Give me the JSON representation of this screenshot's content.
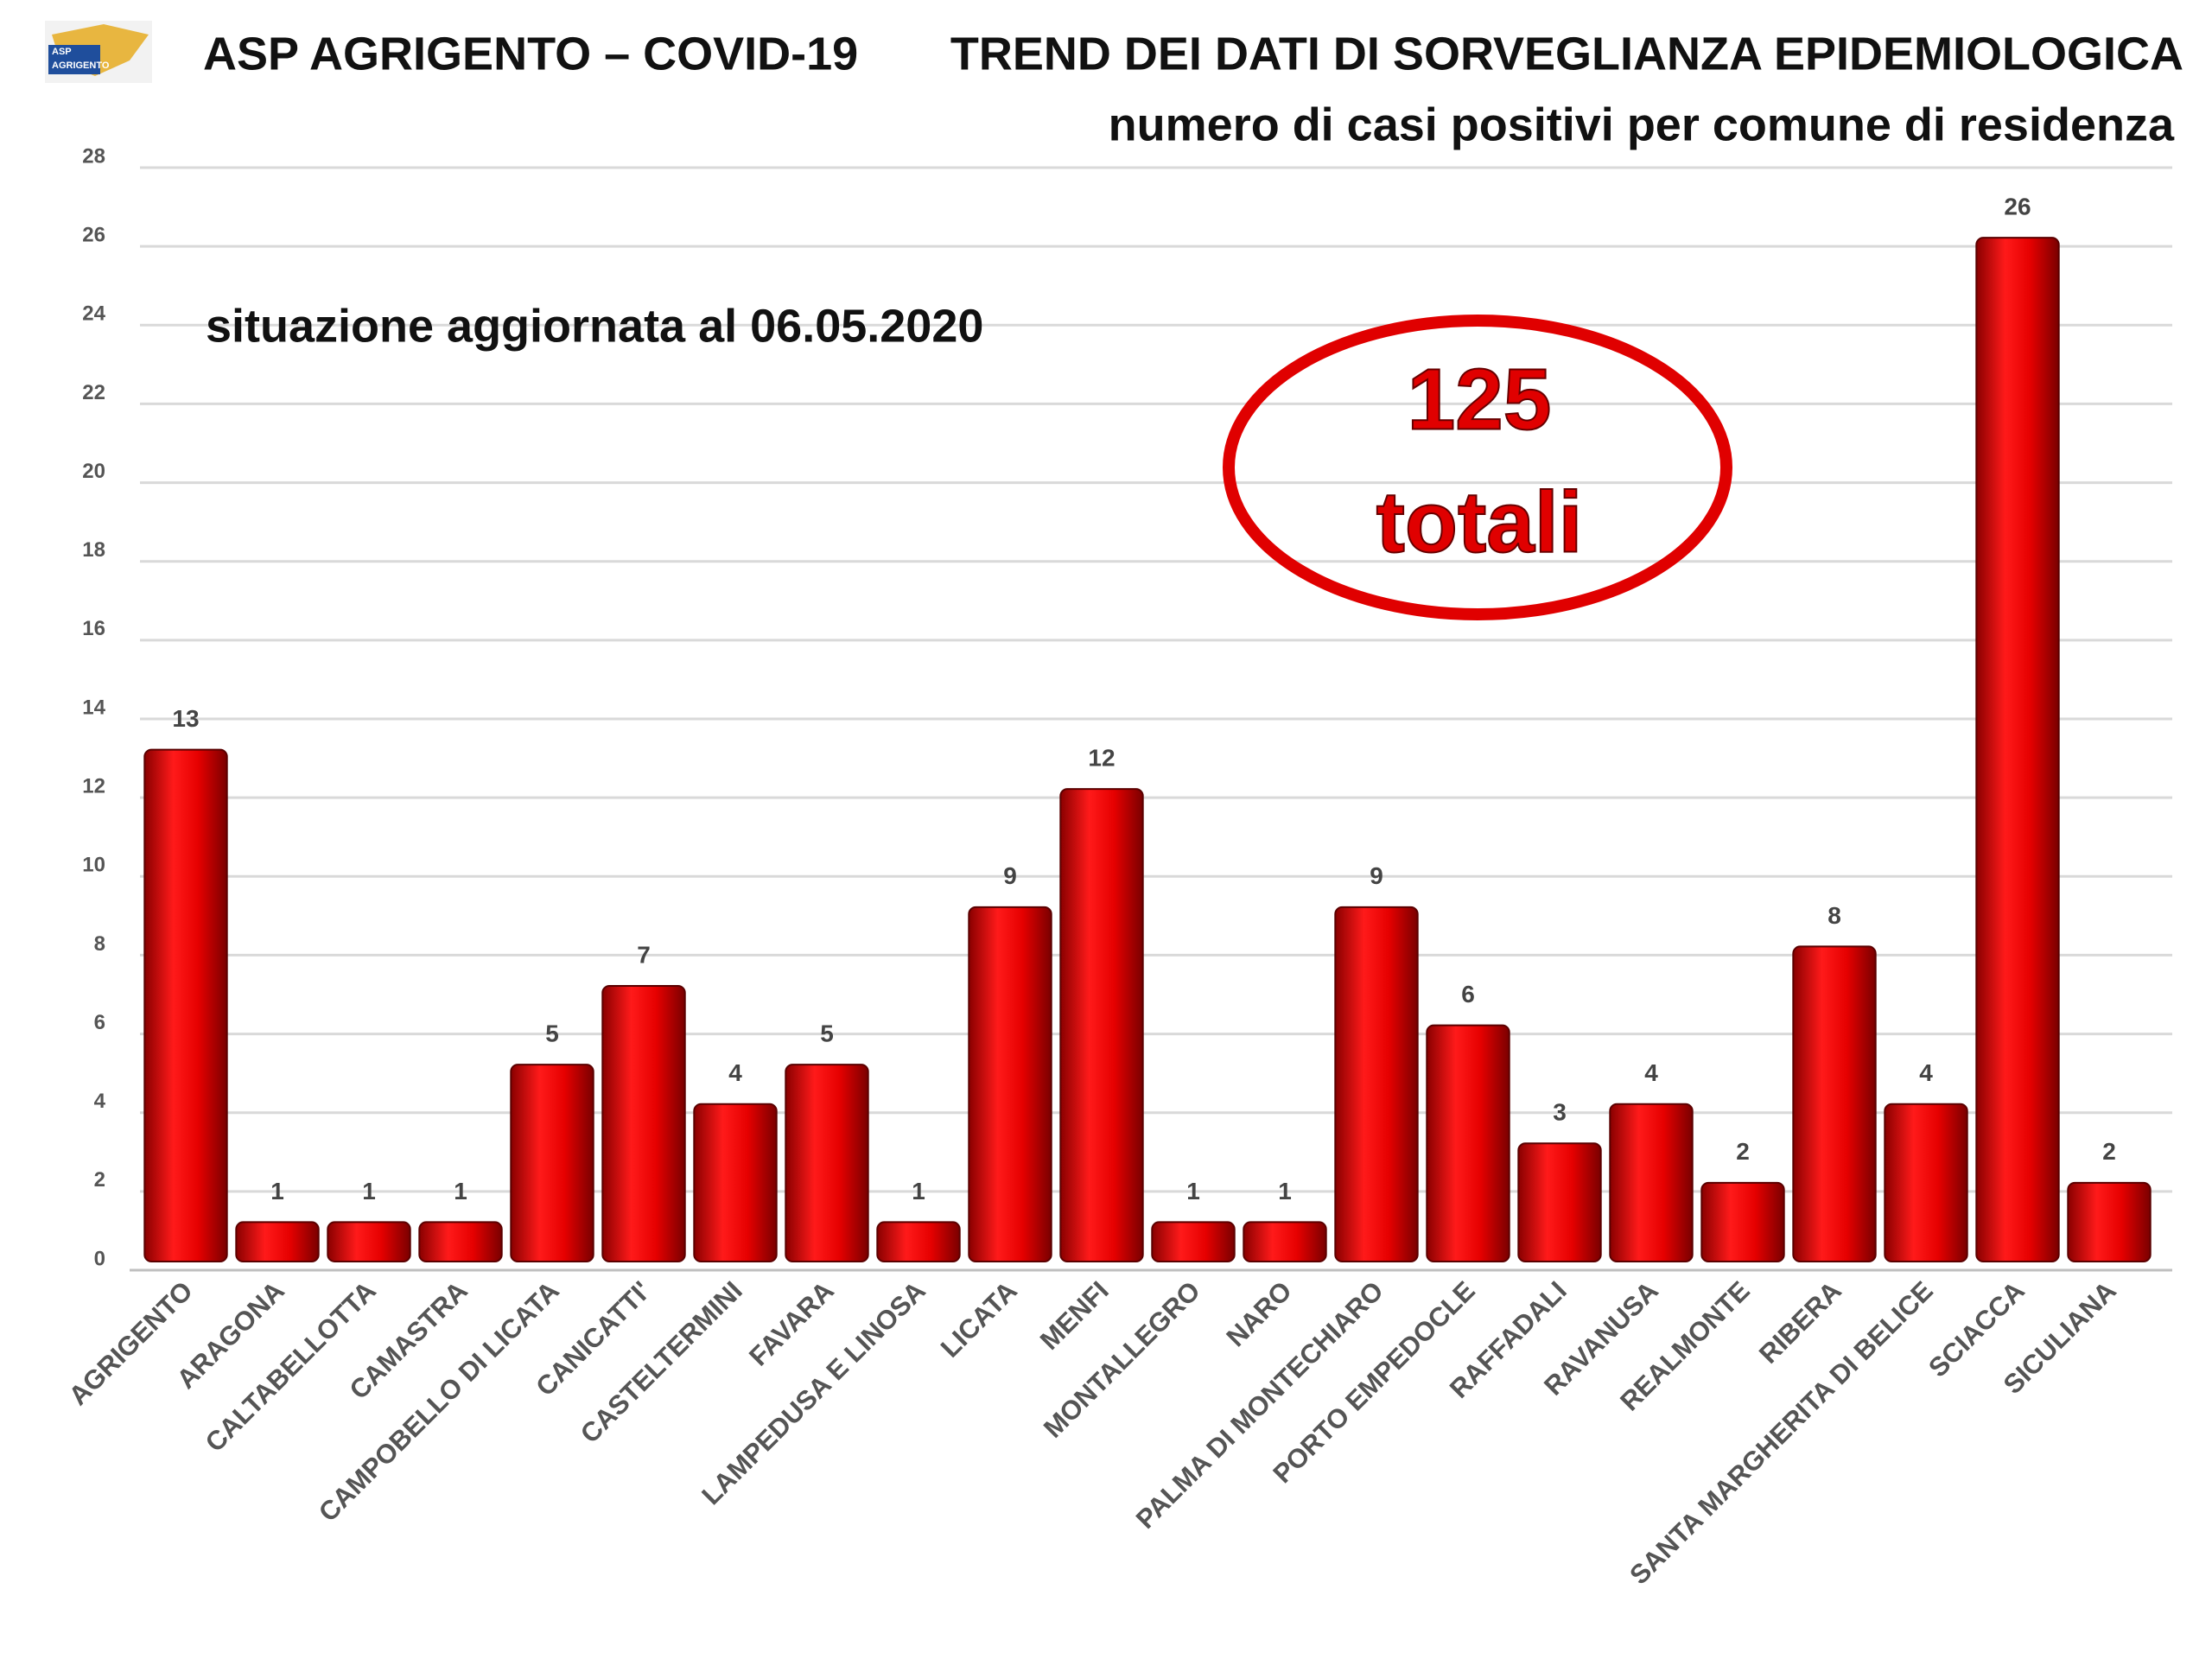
{
  "chart_data": {
    "type": "bar",
    "title": "ASP AGRIGENTO – COVID-19",
    "subtitle": "TREND DEI DATI DI SORVEGLIANZA EPIDEMIOLOGICA",
    "subtitle2": "numero di casi positivi per comune di residenza",
    "annotations": [
      "situazione aggiornata al 06.05.2020",
      "125",
      "totali"
    ],
    "logo": [
      "ASP",
      "AGRIGENTO"
    ],
    "categories": [
      "AGRIGENTO",
      "ARAGONA",
      "CALTABELLOTTA",
      "CAMASTRA",
      "CAMPOBELLO DI LICATA",
      "CANICATTI'",
      "CASTELTERMINI",
      "FAVARA",
      "LAMPEDUSA E LINOSA",
      "LICATA",
      "MENFI",
      "MONTALLEGRO",
      "NARO",
      "PALMA DI MONTECHIARO",
      "PORTO EMPEDOCLE",
      "RAFFADALI",
      "RAVANUSA",
      "REALMONTE",
      "RIBERA",
      "SANTA MARGHERITA DI BELICE",
      "SCIACCA",
      "SICULIANA"
    ],
    "values": [
      13,
      1,
      1,
      1,
      5,
      7,
      4,
      5,
      1,
      9,
      12,
      1,
      1,
      9,
      6,
      3,
      4,
      2,
      8,
      4,
      26,
      2
    ],
    "color": "#e00000",
    "ylim": [
      0,
      28
    ],
    "yticks": [
      0,
      2,
      4,
      6,
      8,
      10,
      12,
      14,
      16,
      18,
      20,
      22,
      24,
      26,
      28
    ],
    "grid": true
  }
}
